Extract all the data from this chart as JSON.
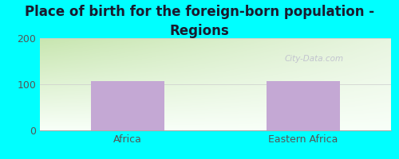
{
  "title": "Place of birth for the foreign-born population -\nRegions",
  "categories": [
    "Africa",
    "Eastern Africa"
  ],
  "values": [
    107,
    107
  ],
  "bar_color": "#c4a8d4",
  "background_color": "#00ffff",
  "plot_bg_color_top_left": "#c8e6b0",
  "plot_bg_color_top_right": "#e8f5e0",
  "plot_bg_color_bottom": "#f0faf0",
  "ylim": [
    0,
    200
  ],
  "yticks": [
    0,
    100,
    200
  ],
  "title_fontsize": 12,
  "tick_fontsize": 9,
  "tick_color": "#555555",
  "watermark": "City-Data.com",
  "watermark_color": "#bbbbcc",
  "fig_width": 5.0,
  "fig_height": 2.0,
  "dpi": 100
}
